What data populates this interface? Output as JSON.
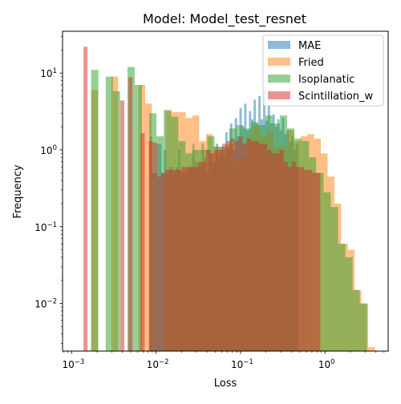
{
  "chart_data": {
    "type": "histogram",
    "title": "Model: Model_test_resnet",
    "xlabel": "Loss",
    "ylabel": "Frequency",
    "xscale": "log",
    "yscale": "log",
    "xlim": [
      0.00078,
      5.6
    ],
    "ylim": [
      0.0024,
      35
    ],
    "grid": false,
    "legend_position": "top-right",
    "xticks": [
      {
        "value": 0.001,
        "label": "10",
        "exp": "−3"
      },
      {
        "value": 0.01,
        "label": "10",
        "exp": "−2"
      },
      {
        "value": 0.1,
        "label": "10",
        "exp": "−1"
      },
      {
        "value": 1,
        "label": "10",
        "exp": "0"
      }
    ],
    "yticks": [
      {
        "value": 0.01,
        "label": "10",
        "exp": "−2"
      },
      {
        "value": 0.1,
        "label": "10",
        "exp": "−1"
      },
      {
        "value": 1,
        "label": "10",
        "exp": "0"
      },
      {
        "value": 10,
        "label": "10",
        "exp": "1"
      }
    ],
    "series": [
      {
        "name": "MAE",
        "color": "#1f77b4",
        "bin_start": 0.0084,
        "bin_end": 0.485,
        "values": [
          1.5,
          0.5,
          0.5,
          1.2,
          1.2,
          0.5,
          1.0,
          0.5,
          0.6,
          0.6,
          0.5,
          0.6,
          1.0,
          0.5,
          0.5,
          0.5,
          0.6,
          0.6,
          1.2,
          0.7,
          0.6,
          0.6,
          1.2,
          0.8,
          0.5,
          1.0,
          0.7,
          0.7,
          1.2,
          0.8,
          1.1,
          0.8,
          1.7,
          1.0,
          2.2,
          1.0,
          2.6,
          1.5,
          3.5,
          2.0,
          4.0,
          1.8,
          3.2,
          2.5,
          4.5,
          2.2,
          5.0,
          2.5,
          6.0,
          2.4,
          3.8,
          2.2,
          2.9,
          2.0,
          2.5,
          1.8,
          2.6,
          1.6,
          1.8,
          1.3,
          1.5,
          1.0,
          1.2
        ]
      },
      {
        "name": "Fried",
        "color": "#ff7f0e",
        "bin_start": 0.0017,
        "bin_end": 3.9,
        "values": [
          6.0,
          0.0,
          0.0,
          9.0,
          0.0,
          0.0,
          0.0,
          7.0,
          4.0,
          0.0,
          0.0,
          3.2,
          3.1,
          3.1,
          2.6,
          2.8,
          1.3,
          1.6,
          1.1,
          1.0,
          1.2,
          0.7,
          0.8,
          1.6,
          2.1,
          1.5,
          1.8,
          1.1,
          1.1,
          1.8,
          1.3,
          1.5,
          1.6,
          1.4,
          0.9,
          0.45,
          0.2,
          0.06,
          0.05,
          0.015,
          0.01,
          0.0027
        ]
      },
      {
        "name": "Isoplanatic",
        "color": "#2ca02c",
        "bin_start": 0.0017,
        "bin_end": 3.15,
        "values": [
          11.0,
          0.0,
          9.0,
          5.8,
          0.0,
          12.0,
          7.0,
          0.0,
          3.0,
          1.5,
          3.3,
          2.7,
          1.3,
          0.9,
          1.0,
          1.0,
          1.5,
          1.1,
          1.1,
          1.9,
          2.1,
          1.9,
          2.3,
          2.1,
          2.8,
          2.2,
          2.8,
          1.9,
          1.4,
          1.3,
          0.8,
          0.5,
          0.28,
          0.18,
          0.06,
          0.04,
          0.015,
          0.01
        ]
      },
      {
        "name": "Scintillation_w",
        "color": "#d62728",
        "bin_start": 0.00138,
        "bin_end": 0.88,
        "values": [
          22.0,
          0.0,
          0.0,
          0.0,
          0.0,
          0.0,
          0.0,
          0.0,
          0.0,
          4.4,
          0.0,
          8.8,
          0.0,
          0.0,
          1.65,
          0.0,
          1.3,
          1.25,
          0.45,
          0.5,
          0.55,
          0.55,
          0.55,
          0.55,
          0.6,
          0.6,
          0.6,
          0.6,
          0.7,
          0.7,
          1.0,
          0.9,
          1.0,
          1.0,
          1.2,
          1.3,
          1.4,
          1.3,
          1.5,
          1.2,
          1.4,
          1.3,
          1.3,
          1.2,
          1.2,
          1.0,
          0.9,
          0.9,
          1.0,
          0.7,
          0.6,
          0.7,
          0.6,
          0.6,
          0.55,
          0.55,
          0.5,
          0.5
        ]
      }
    ]
  }
}
